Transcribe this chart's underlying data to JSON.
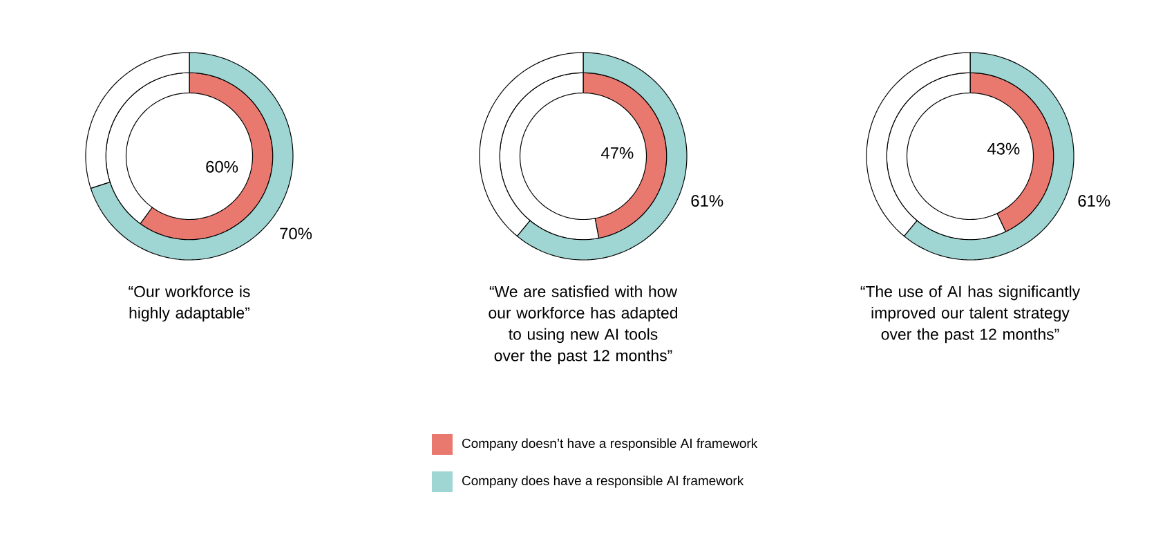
{
  "chart_data": [
    {
      "type": "donut",
      "title": "“Our workforce is highly adaptable”",
      "series": [
        {
          "colors": [
            "#e9786f",
            "#ffffff"
          ],
          "values": [
            60,
            40
          ],
          "value_labels": [
            "60%",
            null
          ]
        },
        {
          "colors": [
            "#9fd6d3",
            "#ffffff"
          ],
          "values": [
            70,
            30
          ],
          "value_labels": [
            "70%",
            null
          ]
        }
      ]
    },
    {
      "type": "donut",
      "title": "“We are satisfied with how our workforce has adapted to using new AI tools over the past 12 months”",
      "legend": "bottom",
      "series": [
        {
          "name": "Company doesn’t have a responsible AI framework",
          "color": "#e9786f",
          "colors": [
            "#e9786f",
            "#ffffff"
          ],
          "values": [
            47,
            53
          ],
          "value_labels": [
            "47%",
            null
          ]
        },
        {
          "name": "Company does have a responsible AI framework",
          "color": "#9fd6d3",
          "colors": [
            "#9fd6d3",
            "#ffffff"
          ],
          "values": [
            61,
            39
          ],
          "value_labels": [
            "61%",
            null
          ]
        }
      ]
    },
    {
      "type": "donut",
      "title": "“The use of AI has significantly improved our talent strategy over the past 12 months”",
      "series": [
        {
          "colors": [
            "#e9786f",
            "#ffffff"
          ],
          "values": [
            43,
            57
          ],
          "value_labels": [
            "43%",
            null
          ]
        },
        {
          "colors": [
            "#9fd6d3",
            "#ffffff"
          ],
          "values": [
            61,
            39
          ],
          "value_labels": [
            "61%",
            null
          ]
        }
      ]
    }
  ]
}
